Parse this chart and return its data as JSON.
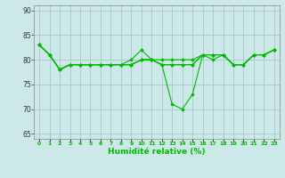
{
  "xlabel": "Humidité relative (%)",
  "background_color": "#cce8e8",
  "grid_color": "#aacccc",
  "line_color": "#00bb00",
  "xlim": [
    -0.5,
    23.5
  ],
  "ylim": [
    64,
    91
  ],
  "yticks": [
    65,
    70,
    75,
    80,
    85,
    90
  ],
  "xtick_labels": [
    "0",
    "1",
    "2",
    "3",
    "4",
    "5",
    "6",
    "7",
    "8",
    "9",
    "10",
    "11",
    "12",
    "13",
    "14",
    "15",
    "16",
    "17",
    "18",
    "19",
    "20",
    "21",
    "22",
    "23"
  ],
  "series": [
    [
      83,
      81,
      78,
      79,
      79,
      79,
      79,
      79,
      79,
      80,
      82,
      80,
      80,
      80,
      80,
      80,
      81,
      81,
      81,
      79,
      79,
      81,
      81,
      82
    ],
    [
      83,
      81,
      78,
      79,
      79,
      79,
      79,
      79,
      79,
      79,
      80,
      80,
      79,
      79,
      79,
      79,
      81,
      81,
      81,
      79,
      79,
      81,
      81,
      82
    ],
    [
      83,
      81,
      78,
      79,
      79,
      79,
      79,
      79,
      79,
      79,
      80,
      80,
      79,
      79,
      79,
      79,
      81,
      81,
      81,
      79,
      79,
      81,
      81,
      82
    ],
    [
      83,
      81,
      78,
      79,
      79,
      79,
      79,
      79,
      79,
      79,
      80,
      80,
      79,
      71,
      70,
      73,
      81,
      80,
      81,
      79,
      79,
      81,
      81,
      82
    ]
  ]
}
